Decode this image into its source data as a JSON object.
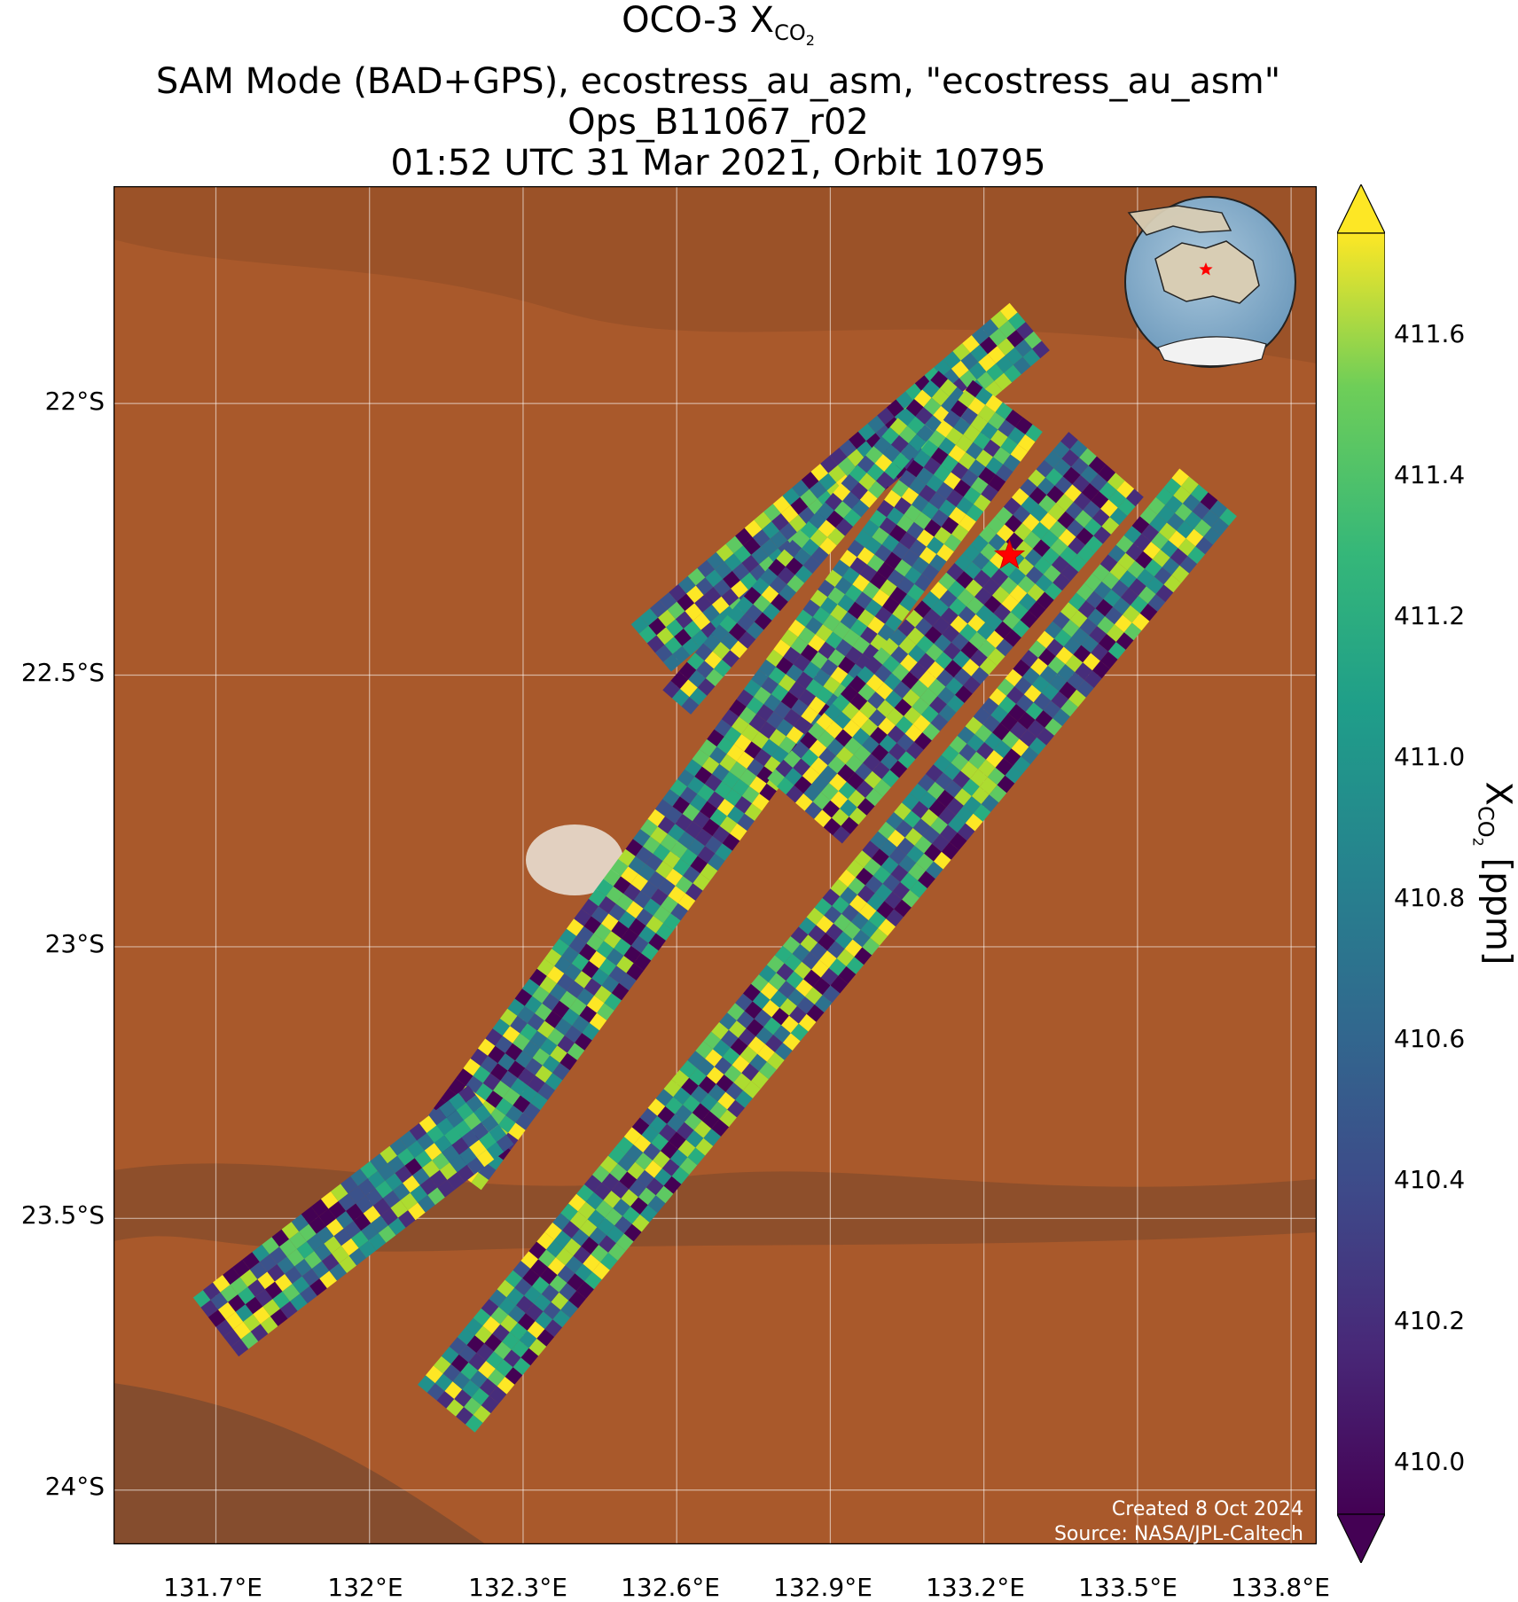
{
  "title": {
    "line1_prefix": "OCO-3 X",
    "line1_sub": "CO",
    "line1_sub2": "2",
    "line2": "SAM Mode (BAD+GPS), ecostress_au_asm, \"ecostress_au_asm\"",
    "line3": "Ops_B11067_r02",
    "line4": "01:52 UTC 31 Mar 2021, Orbit 10795"
  },
  "lat_ticks": [
    "22°S",
    "22.5°S",
    "23°S",
    "23.5°S",
    "24°S"
  ],
  "lon_ticks": [
    "131.7°E",
    "132°E",
    "132.3°E",
    "132.6°E",
    "132.9°E",
    "133.2°E",
    "133.5°E",
    "133.8°E"
  ],
  "colorbar": {
    "ticks": [
      "411.6",
      "411.4",
      "411.2",
      "411.0",
      "410.8",
      "410.6",
      "410.4",
      "410.2",
      "410.0"
    ],
    "label_prefix": "X",
    "label_sub": "CO",
    "label_sub2": "2",
    "label_suffix": " [ppm]",
    "colormap": "viridis",
    "extend": "both"
  },
  "credits": {
    "created": "Created 8 Oct 2024",
    "source": "Source: NASA/JPL-Caltech"
  },
  "chart_data": {
    "type": "heatmap",
    "variable": "XCO2",
    "units": "ppm",
    "vmin": 410.0,
    "vmax": 411.7,
    "lat_range": [
      -24.1,
      -21.6
    ],
    "lon_range": [
      131.5,
      133.85
    ],
    "target_marker": {
      "lon": 133.25,
      "lat": -22.28,
      "symbol": "star",
      "color": "#ff0000"
    },
    "inset_globe": {
      "region": "Australia",
      "marker": "star",
      "marker_color": "#ff0000"
    },
    "background": "satellite imagery, arid red desert terrain",
    "swaths": [
      {
        "lon_start": 132.55,
        "lat_start": -22.45,
        "lon_end": 133.3,
        "lat_end": -21.85,
        "width_deg": 0.13
      },
      {
        "lon_start": 132.6,
        "lat_start": -22.55,
        "lon_end": 133.15,
        "lat_end": -21.95,
        "width_deg": 0.08
      },
      {
        "lon_start": 132.15,
        "lat_start": -23.4,
        "lon_end": 133.25,
        "lat_end": -22.0,
        "width_deg": 0.17
      },
      {
        "lon_start": 132.85,
        "lat_start": -22.75,
        "lon_end": 133.45,
        "lat_end": -22.1,
        "width_deg": 0.2
      },
      {
        "lon_start": 131.7,
        "lat_start": -23.7,
        "lon_end": 132.25,
        "lat_end": -23.3,
        "width_deg": 0.14
      },
      {
        "lon_start": 132.15,
        "lat_start": -23.85,
        "lon_end": 133.65,
        "lat_end": -22.15,
        "width_deg": 0.15
      }
    ]
  }
}
